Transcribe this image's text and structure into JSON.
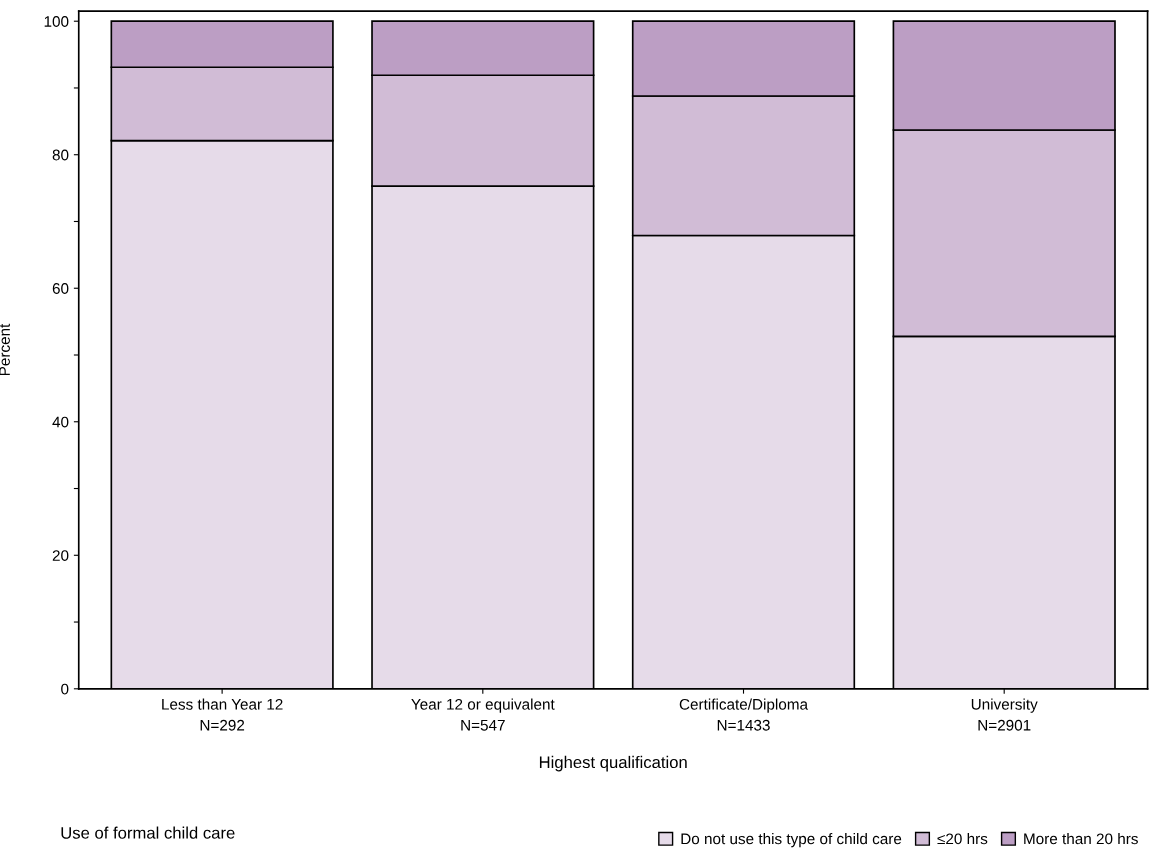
{
  "chart_data": {
    "type": "bar",
    "stacked": true,
    "xlabel": "Highest qualification",
    "ylabel": "Percent",
    "legend_title": "Use of formal child care",
    "legend": "bottom",
    "categories": [
      "Less than Year 12\nN=292",
      "Year 12 or equivalent\nN=547",
      "Certificate/Diploma\nN=1433",
      "University\nN=2901"
    ],
    "series": [
      {
        "name": "Do not use this type of child care",
        "color": "#e6dbe9",
        "values": [
          82.1,
          75.3,
          67.9,
          52.8
        ]
      },
      {
        "name": "≤20 hrs",
        "color": "#d1bcd6",
        "values": [
          11.0,
          16.6,
          20.9,
          30.9
        ]
      },
      {
        "name": "More than 20 hrs",
        "color": "#bc9ec4",
        "values": [
          6.9,
          8.1,
          11.2,
          16.3
        ]
      }
    ],
    "ylim": [
      0,
      101.5
    ],
    "yticks": [
      0,
      {
        "value": 10,
        "label": null
      },
      20,
      {
        "value": 30,
        "label": null
      },
      40,
      {
        "value": 50,
        "label": null
      },
      60,
      {
        "value": 70,
        "label": null
      },
      80,
      {
        "value": 90,
        "label": null
      },
      100
    ],
    "grid": false
  }
}
